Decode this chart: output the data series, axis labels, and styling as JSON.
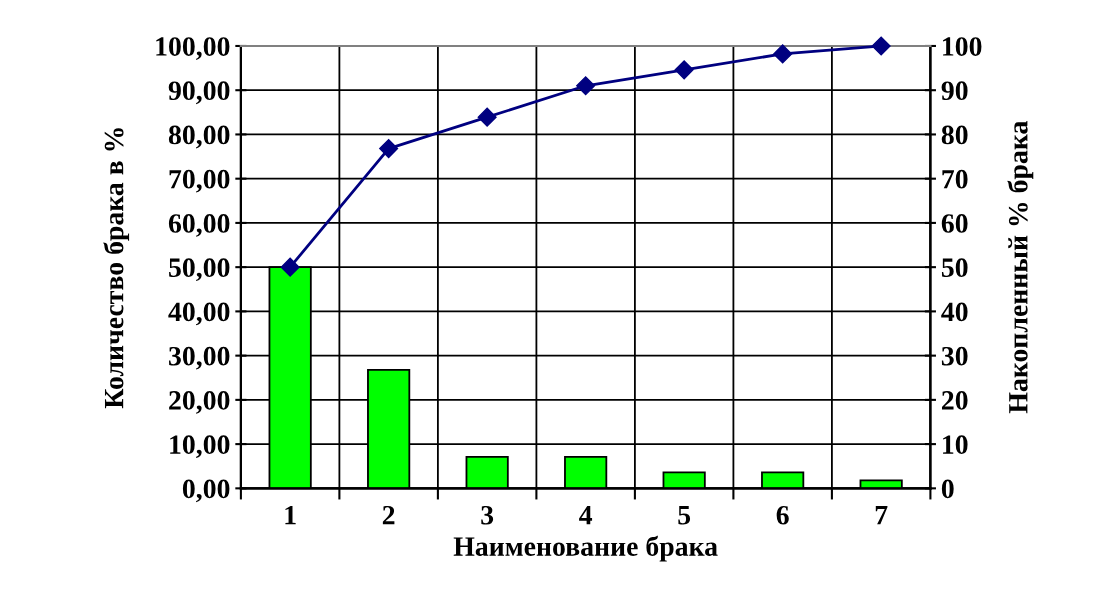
{
  "chart_data": {
    "type": "bar",
    "xlabel": "Наименование брака",
    "ylabel": "Количество брака в %",
    "y2label": "Накопленный % брака",
    "categories": [
      "1",
      "2",
      "3",
      "4",
      "5",
      "6",
      "7"
    ],
    "series": [
      {
        "color": "#00ff00",
        "values": [
          50,
          26.8,
          7.1,
          7.1,
          3.6,
          3.6,
          1.8
        ]
      },
      {
        "type": "line",
        "axis": "y2",
        "color": "#000080",
        "marker": "diamond",
        "line_style": "solid",
        "values": [
          50,
          76.8,
          83.9,
          91.0,
          94.6,
          98.2,
          100
        ]
      }
    ],
    "ylim": [
      0,
      100
    ],
    "yticks": [
      {
        "value": 0,
        "label": "0,00"
      },
      {
        "value": 10,
        "label": "10,00"
      },
      {
        "value": 20,
        "label": "20,00"
      },
      {
        "value": 30,
        "label": "30,00"
      },
      {
        "value": 40,
        "label": "40,00"
      },
      {
        "value": 50,
        "label": "50,00"
      },
      {
        "value": 60,
        "label": "60,00"
      },
      {
        "value": 70,
        "label": "70,00"
      },
      {
        "value": 80,
        "label": "80,00"
      },
      {
        "value": 90,
        "label": "90,00"
      },
      {
        "value": 100,
        "label": "100,00"
      }
    ],
    "y2lim": [
      0,
      100
    ],
    "y2ticks": [
      0,
      10,
      20,
      30,
      40,
      50,
      60,
      70,
      80,
      90,
      100
    ],
    "grid": true
  }
}
